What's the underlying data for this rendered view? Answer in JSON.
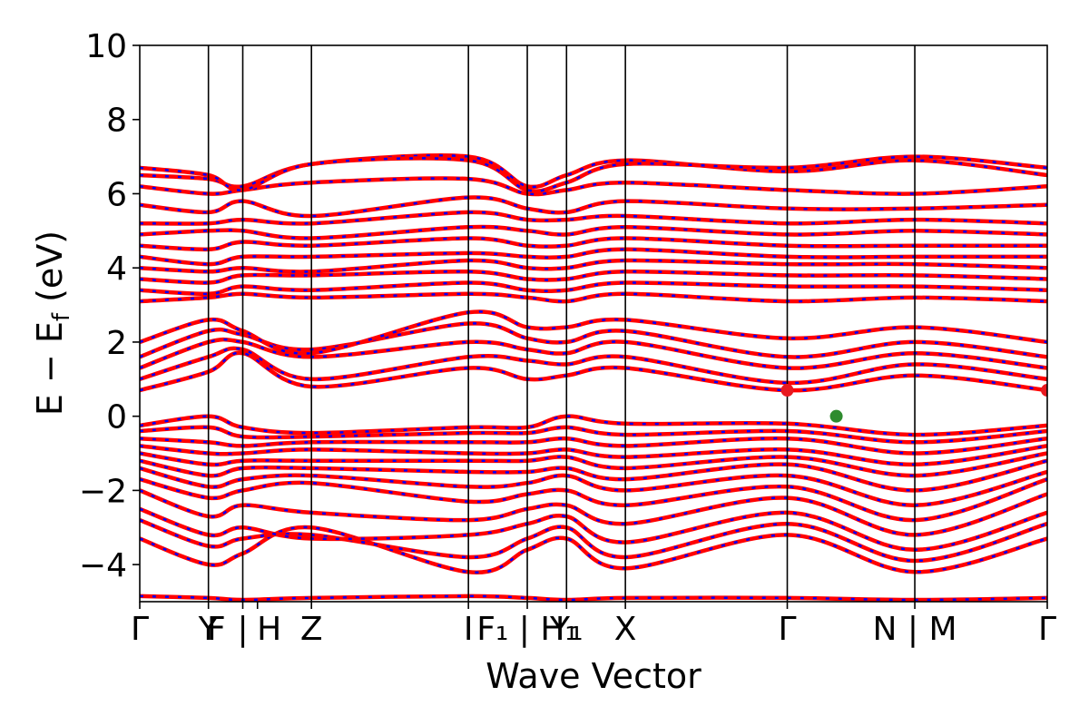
{
  "chart_data": {
    "type": "line",
    "xlabel": "Wave Vector",
    "ylabel": "E − E_f (eV)",
    "ylabel_main": "E − E",
    "ylabel_sub": "f",
    "ylabel_unit": " (eV)",
    "ylim": [
      -5,
      10
    ],
    "yticks": [
      -4,
      -2,
      0,
      2,
      4,
      6,
      8,
      10
    ],
    "ytick_labels": [
      "−4",
      "−2",
      "0",
      "2",
      "4",
      "6",
      "8",
      "10"
    ],
    "xlim": [
      0,
      13.5
    ],
    "kpoints": [
      {
        "label": "Γ",
        "x": 0
      },
      {
        "label": "Y | F",
        "x": 0.7
      },
      {
        "label": "F",
        "x": 1.05
      },
      {
        "label": "H",
        "x": 1.2
      },
      {
        "label": "Z",
        "x": 1.75
      },
      {
        "label": "I",
        "x": 3.35
      },
      {
        "label": "F₁ | H₁",
        "x": 3.95
      },
      {
        "label": "Y₁",
        "x": 4.35
      },
      {
        "label": "X",
        "x": 4.95
      },
      {
        "label": "Γ",
        "x": 6.6
      },
      {
        "label": "N | M",
        "x": 7.9
      },
      {
        "label": "Γ",
        "x": 9.25
      }
    ],
    "tick_labels_display": [
      {
        "text": "Γ",
        "x": 0
      },
      {
        "text": "Y",
        "x": 0.7
      },
      {
        "text": "F",
        "x": 0.78
      },
      {
        "text": "|",
        "x": 1.05
      },
      {
        "text": "H",
        "x": 1.32
      },
      {
        "text": "Z",
        "x": 1.75
      },
      {
        "text": "I",
        "x": 3.35
      },
      {
        "text": "F₁ | H₁",
        "x": 3.95
      },
      {
        "text": "Y₁",
        "x": 4.35
      },
      {
        "text": "X",
        "x": 4.95
      },
      {
        "text": "Γ",
        "x": 6.6
      },
      {
        "text": "N | M",
        "x": 7.9
      },
      {
        "text": "Γ",
        "x": 9.25
      }
    ],
    "vlines_x": [
      0.7,
      1.05,
      1.75,
      3.35,
      3.95,
      4.35,
      4.95,
      6.6,
      7.9
    ],
    "band_x": [
      0,
      0.7,
      1.05,
      1.75,
      3.35,
      3.95,
      4.35,
      4.95,
      6.6,
      7.9,
      9.25
    ],
    "series": [
      {
        "values": [
          -4.85,
          -4.9,
          -4.95,
          -4.9,
          -4.85,
          -4.9,
          -4.95,
          -4.9,
          -4.9,
          -4.95,
          -4.9
        ]
      },
      {
        "values": [
          -3.3,
          -4.0,
          -3.7,
          -3.0,
          -4.2,
          -3.6,
          -3.3,
          -4.1,
          -3.2,
          -4.2,
          -3.3
        ]
      },
      {
        "values": [
          -2.8,
          -3.5,
          -3.3,
          -3.2,
          -3.8,
          -3.3,
          -3.0,
          -3.8,
          -2.9,
          -3.9,
          -2.9
        ]
      },
      {
        "values": [
          -2.5,
          -3.2,
          -3.0,
          -3.3,
          -3.2,
          -2.9,
          -2.7,
          -3.4,
          -2.6,
          -3.6,
          -2.6
        ]
      },
      {
        "values": [
          -2.0,
          -2.7,
          -2.4,
          -2.6,
          -2.8,
          -2.5,
          -2.4,
          -2.9,
          -2.2,
          -3.2,
          -2.1
        ]
      },
      {
        "values": [
          -1.7,
          -2.2,
          -2.0,
          -1.8,
          -2.3,
          -2.1,
          -2.0,
          -2.4,
          -1.9,
          -2.8,
          -1.7
        ]
      },
      {
        "values": [
          -1.4,
          -1.9,
          -1.7,
          -1.6,
          -1.9,
          -1.8,
          -1.6,
          -2.0,
          -1.6,
          -2.4,
          -1.5
        ]
      },
      {
        "values": [
          -1.2,
          -1.6,
          -1.4,
          -1.4,
          -1.5,
          -1.5,
          -1.4,
          -1.7,
          -1.3,
          -2.0,
          -1.2
        ]
      },
      {
        "values": [
          -1.0,
          -1.3,
          -1.2,
          -1.2,
          -1.2,
          -1.2,
          -1.1,
          -1.4,
          -1.1,
          -1.6,
          -1.0
        ]
      },
      {
        "values": [
          -0.8,
          -1.0,
          -1.0,
          -0.9,
          -1.0,
          -1.0,
          -0.9,
          -1.1,
          -0.9,
          -1.3,
          -0.8
        ]
      },
      {
        "values": [
          -0.6,
          -0.7,
          -0.8,
          -0.7,
          -0.7,
          -0.7,
          -0.6,
          -0.8,
          -0.6,
          -1.0,
          -0.6
        ]
      },
      {
        "values": [
          -0.4,
          -0.3,
          -0.55,
          -0.55,
          -0.45,
          -0.45,
          -0.3,
          -0.5,
          -0.4,
          -0.7,
          -0.4
        ]
      },
      {
        "values": [
          -0.25,
          0.0,
          -0.3,
          -0.45,
          -0.3,
          -0.3,
          0.0,
          -0.2,
          -0.2,
          -0.5,
          -0.25
        ]
      },
      {
        "values": [
          0.7,
          1.2,
          1.7,
          0.8,
          1.3,
          1.0,
          1.1,
          1.3,
          0.7,
          1.1,
          0.7
        ]
      },
      {
        "values": [
          1.0,
          1.6,
          1.8,
          1.0,
          1.6,
          1.5,
          1.4,
          1.6,
          0.9,
          1.4,
          1.0
        ]
      },
      {
        "values": [
          1.3,
          2.0,
          2.0,
          1.6,
          2.0,
          1.8,
          1.7,
          2.0,
          1.3,
          1.7,
          1.3
        ]
      },
      {
        "values": [
          1.6,
          2.3,
          2.2,
          1.8,
          2.5,
          2.1,
          2.0,
          2.3,
          1.6,
          2.0,
          1.6
        ]
      },
      {
        "values": [
          2.0,
          2.6,
          2.3,
          1.7,
          2.8,
          2.4,
          2.4,
          2.6,
          2.1,
          2.4,
          2.0
        ]
      },
      {
        "values": [
          3.1,
          3.2,
          3.3,
          3.2,
          3.3,
          3.2,
          3.1,
          3.3,
          3.1,
          3.2,
          3.1
        ]
      },
      {
        "values": [
          3.4,
          3.3,
          3.5,
          3.4,
          3.6,
          3.4,
          3.4,
          3.6,
          3.5,
          3.5,
          3.4
        ]
      },
      {
        "values": [
          3.7,
          3.6,
          3.8,
          3.8,
          3.9,
          3.7,
          3.7,
          3.9,
          3.8,
          3.8,
          3.7
        ]
      },
      {
        "values": [
          4.0,
          3.9,
          4.0,
          3.9,
          4.2,
          4.0,
          4.0,
          4.2,
          4.1,
          4.1,
          4.0
        ]
      },
      {
        "values": [
          4.3,
          4.1,
          4.3,
          4.3,
          4.4,
          4.3,
          4.3,
          4.5,
          4.3,
          4.3,
          4.3
        ]
      },
      {
        "values": [
          4.6,
          4.5,
          4.7,
          4.6,
          4.8,
          4.6,
          4.6,
          4.8,
          4.6,
          4.6,
          4.6
        ]
      },
      {
        "values": [
          4.9,
          5.0,
          5.0,
          4.8,
          5.1,
          5.0,
          4.9,
          5.1,
          4.9,
          5.0,
          4.9
        ]
      },
      {
        "values": [
          5.2,
          5.2,
          5.3,
          5.2,
          5.5,
          5.3,
          5.3,
          5.4,
          5.2,
          5.3,
          5.2
        ]
      },
      {
        "values": [
          5.7,
          5.5,
          5.8,
          5.4,
          5.9,
          5.6,
          5.5,
          5.8,
          5.6,
          5.6,
          5.7
        ]
      },
      {
        "values": [
          6.2,
          6.0,
          6.1,
          6.3,
          6.4,
          6.0,
          6.1,
          6.3,
          6.1,
          6.0,
          6.2
        ]
      },
      {
        "values": [
          6.5,
          6.4,
          6.2,
          6.8,
          7.0,
          6.2,
          6.5,
          6.9,
          6.6,
          6.9,
          6.5
        ]
      },
      {
        "values": [
          6.7,
          6.5,
          6.1,
          6.8,
          6.9,
          6.1,
          6.3,
          6.8,
          6.7,
          7.0,
          6.7
        ]
      }
    ],
    "markers": [
      {
        "x": 6.6,
        "y": 0.7,
        "color": "#e8191f"
      },
      {
        "x": 9.25,
        "y": 0.7,
        "color": "#e8191f"
      },
      {
        "x": 7.1,
        "y": 0.0,
        "color": "#2e8b2e"
      }
    ],
    "colors": {
      "band_up": "#ff0000",
      "band_down": "#0000ff",
      "vbm": "#2e8b2e",
      "cbm": "#e8191f",
      "axis": "#000000"
    }
  }
}
